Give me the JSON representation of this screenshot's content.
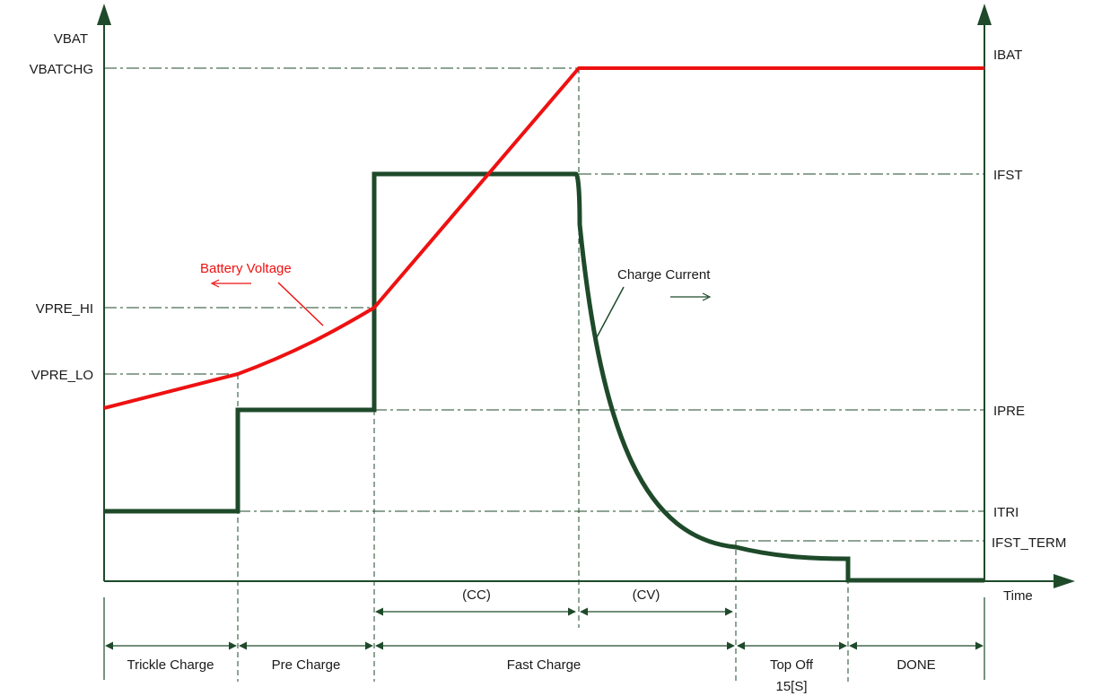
{
  "colors": {
    "axis": "#1e4a2a",
    "voltage_curve": "#ee1111",
    "current_curve": "#1e4a2a",
    "guide_lines": "#1e4a2a",
    "text": "#1a1a1a",
    "voltage_label": "#ee1111"
  },
  "axes": {
    "left_axis_label": "VBAT",
    "right_axis_label": "IBAT",
    "x_axis_label": "Time"
  },
  "voltage_levels": {
    "vbatchg": "VBATCHG",
    "vpre_hi": "VPRE_HI",
    "vpre_lo": "VPRE_LO"
  },
  "current_levels": {
    "ifst": "IFST",
    "ipre": "IPRE",
    "itri": "ITRI",
    "ifst_term": "IFST_TERM"
  },
  "curves": {
    "battery_voltage": "Battery Voltage",
    "charge_current": "Charge Current"
  },
  "sub_phases": {
    "cc": "(CC)",
    "cv": "(CV)"
  },
  "phases": {
    "trickle": "Trickle Charge",
    "pre": "Pre Charge",
    "fast": "Fast Charge",
    "top_off_line1": "Top Off",
    "top_off_line2": "15[S]",
    "done": "DONE"
  }
}
